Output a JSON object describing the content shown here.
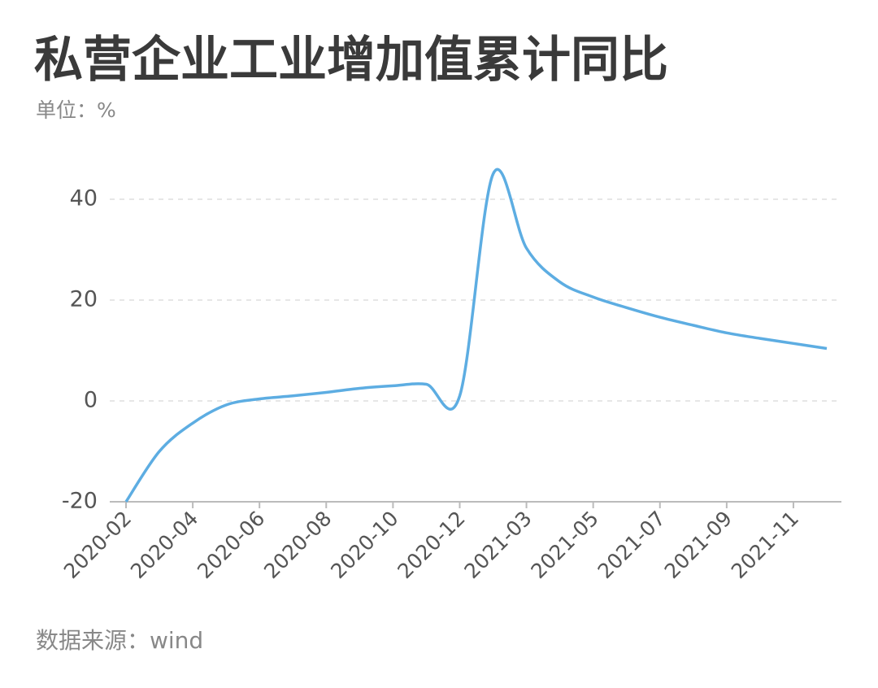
{
  "chart_data": {
    "type": "line",
    "title": "私营企业工业增加值累计同比",
    "subtitle": "单位：%",
    "source": "数据来源：wind",
    "categories": [
      "2020-02",
      null,
      "2020-04",
      null,
      "2020-06",
      null,
      "2020-08",
      null,
      "2020-10",
      null,
      "2020-12",
      null,
      "2021-03",
      null,
      "2021-05",
      null,
      "2021-07",
      null,
      "2021-09",
      null,
      "2021-11",
      null
    ],
    "series": [
      {
        "color": "#5dade2",
        "values": [
          -20,
          -10,
          -4.4,
          -0.8,
          0.4,
          1.0,
          1.7,
          2.5,
          3.0,
          3.3,
          1.0,
          45,
          30.3,
          23.6,
          20.6,
          18.5,
          16.6,
          15.0,
          13.5,
          12.4,
          11.4,
          10.4
        ]
      }
    ],
    "ylim": [
      -20,
      40
    ],
    "yticks": [
      -20,
      0,
      20,
      40
    ],
    "grid": true
  }
}
